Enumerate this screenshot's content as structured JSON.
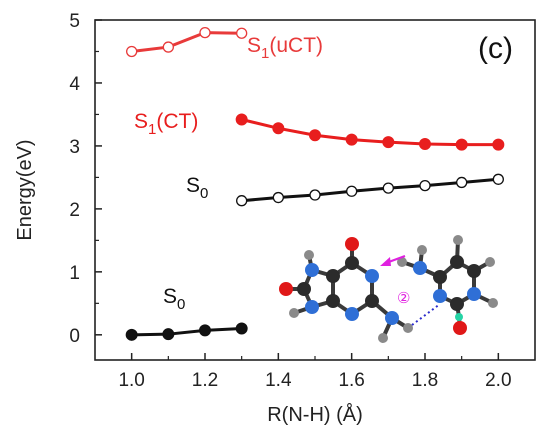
{
  "chart_data": {
    "type": "line",
    "xlabel": "R(N-H) (Å)",
    "ylabel": "Energy(eV)",
    "xlim": [
      0.9,
      2.1
    ],
    "ylim": [
      -0.4,
      5
    ],
    "xticks": [
      "1.0",
      "1.2",
      "1.4",
      "1.6",
      "1.8",
      "2.0"
    ],
    "yticks": [
      "0",
      "1",
      "2",
      "3",
      "4",
      "5"
    ],
    "panel_label": "(c)",
    "series": [
      {
        "label_main": "S",
        "label_sub": "1",
        "label_suffix": "(uCT)",
        "color": "#e83a3a",
        "marker": "open-circle",
        "x": [
          1.0,
          1.1,
          1.2,
          1.3
        ],
        "y": [
          4.5,
          4.57,
          4.8,
          4.79
        ]
      },
      {
        "label_main": "S",
        "label_sub": "1",
        "label_suffix": "(CT)",
        "color": "#e81e1e",
        "marker": "filled-circle",
        "x": [
          1.3,
          1.4,
          1.5,
          1.6,
          1.7,
          1.8,
          1.9,
          2.0
        ],
        "y": [
          3.42,
          3.28,
          3.17,
          3.1,
          3.06,
          3.03,
          3.02,
          3.02
        ]
      },
      {
        "label_main": "S",
        "label_sub": "0",
        "label_suffix": "",
        "color": "#111111",
        "marker": "open-circle",
        "x": [
          1.3,
          1.4,
          1.5,
          1.6,
          1.7,
          1.8,
          1.9,
          2.0
        ],
        "y": [
          2.13,
          2.18,
          2.22,
          2.28,
          2.33,
          2.37,
          2.42,
          2.47
        ]
      },
      {
        "label_main": "S",
        "label_sub": "0",
        "label_suffix": "",
        "color": "#111111",
        "marker": "filled-circle",
        "x": [
          1.0,
          1.1,
          1.2,
          1.3
        ],
        "y": [
          0.0,
          0.01,
          0.07,
          0.1
        ]
      }
    ],
    "inset": {
      "label": "②",
      "colors": {
        "carbon": "#2b2b2b",
        "nitrogen": "#2f6fd6",
        "oxygen": "#e01818",
        "hydrogen": "#8a8a8a",
        "fluorine": "#25d3a5",
        "arrow": "#e020e0"
      }
    }
  }
}
